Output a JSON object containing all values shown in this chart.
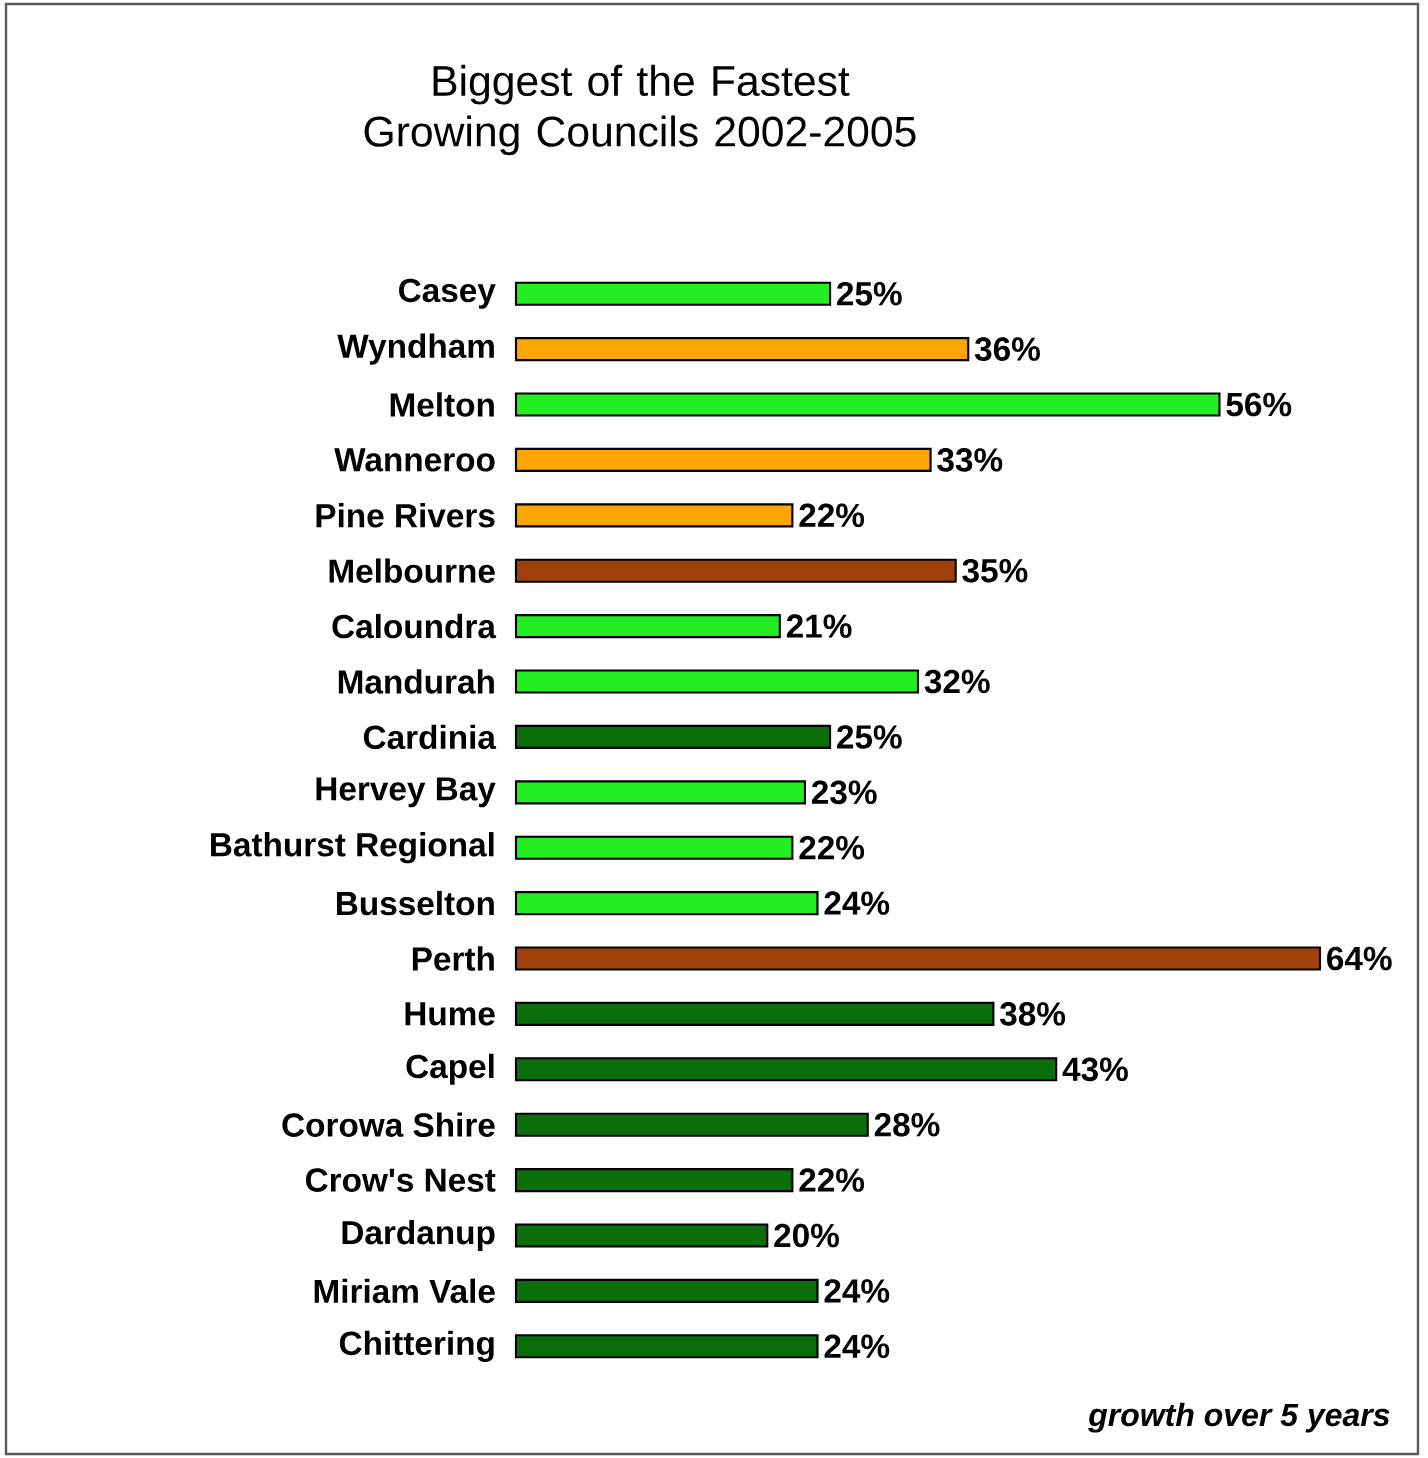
{
  "chart_data": {
    "type": "bar",
    "orientation": "horizontal",
    "title": "Biggest of the Fastest Growing Councils 2002-2005",
    "categories": [
      "Casey",
      "Wyndham",
      "Melton",
      "Wanneroo",
      "Pine Rivers",
      "Melbourne",
      "Caloundra",
      "Mandurah",
      "Cardinia",
      "Hervey Bay",
      "Bathurst Regional",
      "Busselton",
      "Perth",
      "Hume",
      "Capel",
      "Corowa Shire",
      "Crow's Nest",
      "Dardanup",
      "Miriam Vale",
      "Chittering"
    ],
    "values": [
      25,
      36,
      56,
      33,
      22,
      35,
      21,
      32,
      25,
      23,
      22,
      24,
      64,
      38,
      43,
      28,
      22,
      20,
      24,
      24
    ],
    "value_labels": [
      "25%",
      "36%",
      "56%",
      "33%",
      "22%",
      "35%",
      "21%",
      "32%",
      "25%",
      "23%",
      "22%",
      "24%",
      "64%",
      "38%",
      "43%",
      "28%",
      "22%",
      "20%",
      "24%",
      "24%"
    ],
    "colors": [
      "#22ee22",
      "#ffa500",
      "#22ee22",
      "#ffa500",
      "#ffa500",
      "#a0400a",
      "#22ee22",
      "#22ee22",
      "#0a6e0a",
      "#22ee22",
      "#22ee22",
      "#22ee22",
      "#a0400a",
      "#0a6e0a",
      "#0a6e0a",
      "#0a6e0a",
      "#0a6e0a",
      "#0a6e0a",
      "#0a6e0a",
      "#0a6e0a"
    ],
    "annotations": [
      "growth over 5 years"
    ]
  }
}
